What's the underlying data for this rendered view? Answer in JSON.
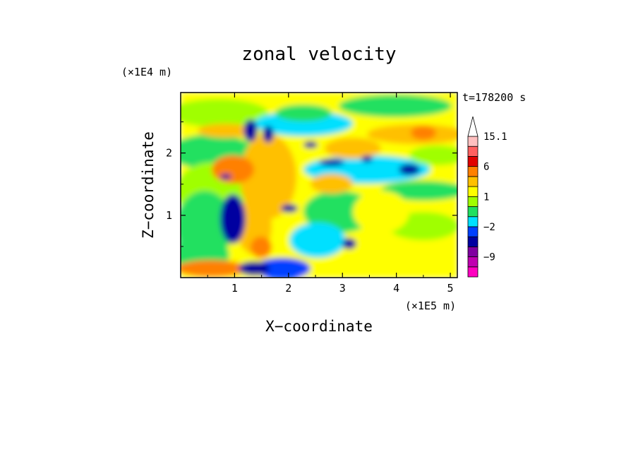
{
  "chart_data": {
    "type": "heatmap",
    "title": "zonal velocity",
    "xlabel": "X−coordinate",
    "ylabel": "Z−coordinate",
    "x_unit": "(×1E5 m)",
    "y_unit": "(×1E4 m)",
    "time_label": "t=178200 s",
    "xlim": [
      0,
      5.13
    ],
    "ylim": [
      0,
      2.97
    ],
    "x_ticks": [
      1,
      2,
      3,
      4,
      5
    ],
    "y_ticks": [
      1,
      2
    ],
    "x_tick_labels": [
      "1",
      "2",
      "3",
      "4",
      "5"
    ],
    "y_tick_labels": [
      "1",
      "2"
    ],
    "colorbar": {
      "extend": "max",
      "labels": [
        {
          "value": 15.1,
          "text": "15.1"
        },
        {
          "value": 6,
          "text": "6"
        },
        {
          "value": 1,
          "text": "1"
        },
        {
          "value": -2,
          "text": "−2"
        },
        {
          "value": -9,
          "text": "−9"
        }
      ],
      "levels": [
        -15,
        -12,
        -9,
        -6,
        -3,
        -2,
        -1,
        0,
        1,
        2,
        3,
        6,
        9,
        12,
        15.1
      ],
      "colors": [
        "#ff00c0",
        "#c000b0",
        "#8000a0",
        "#0000a0",
        "#0040ff",
        "#00e0ff",
        "#20e060",
        "#a0ff00",
        "#ffff00",
        "#ffc000",
        "#ff8000",
        "#e00000",
        "#ff6060",
        "#ffc0c0"
      ]
    }
  }
}
